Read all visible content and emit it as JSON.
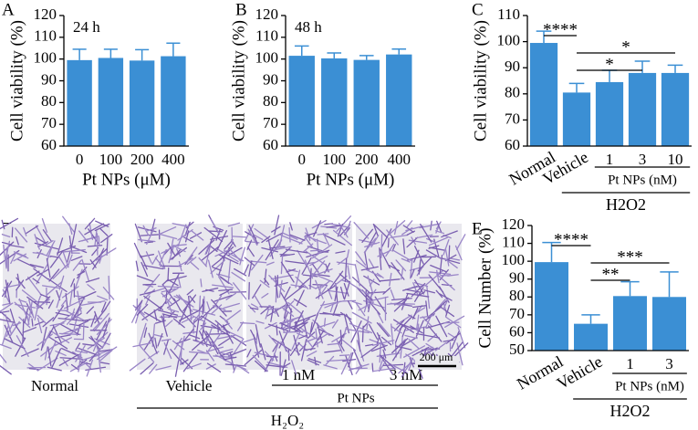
{
  "chart_data": [
    {
      "type": "bar",
      "panel": "A",
      "annotation": "24 h",
      "y_label": "Cell viability (%)",
      "x_label": "Pt NPs (μM)",
      "categories": [
        "0",
        "100",
        "200",
        "400"
      ],
      "values": [
        99.5,
        100.5,
        99.3,
        101.3
      ],
      "errors": [
        5,
        4,
        5,
        6
      ],
      "color": "#3b8fd4",
      "ylim": [
        60,
        120
      ],
      "yticks": [
        60,
        70,
        80,
        90,
        100,
        110,
        120
      ]
    },
    {
      "type": "bar",
      "panel": "B",
      "annotation": "48 h",
      "y_label": "Cell viability (%)",
      "x_label": "Pt NPs (μM)",
      "categories": [
        "0",
        "100",
        "200",
        "400"
      ],
      "values": [
        101.5,
        100.3,
        99.6,
        102.1
      ],
      "errors": [
        4.5,
        2.5,
        2,
        2.5
      ],
      "color": "#3b8fd4",
      "ylim": [
        60,
        120
      ],
      "yticks": [
        60,
        70,
        80,
        90,
        100,
        110,
        120
      ]
    },
    {
      "type": "bar",
      "panel": "C",
      "y_label": "Cell viability (%)",
      "categories": [
        "Normal",
        "Vehicle",
        "1",
        "3",
        "10"
      ],
      "values": [
        99.5,
        80.5,
        84.5,
        88,
        88
      ],
      "errors": [
        4.5,
        3.5,
        4.5,
        4.5,
        3
      ],
      "color": "#3b8fd4",
      "ylim": [
        60,
        110
      ],
      "yticks": [
        60,
        70,
        80,
        90,
        100,
        110
      ],
      "significance": [
        {
          "label": "****",
          "between": [
            "Normal",
            "Vehicle"
          ]
        },
        {
          "label": "*",
          "between": [
            "Vehicle",
            "10"
          ]
        },
        {
          "label": "*",
          "between": [
            "Vehicle",
            "3"
          ]
        }
      ],
      "groups": [
        {
          "label": "Pt NPs (nM)",
          "span": [
            "1",
            "10"
          ]
        },
        {
          "label": "H2O2",
          "span": [
            "Vehicle",
            "10"
          ]
        }
      ]
    },
    {
      "type": "bar",
      "panel": "E",
      "y_label": "Cell Number (%)",
      "categories": [
        "Normal",
        "Vehicle",
        "1",
        "3"
      ],
      "values": [
        99.5,
        65,
        80.5,
        80
      ],
      "errors": [
        11,
        5,
        8,
        14
      ],
      "color": "#3b8fd4",
      "ylim": [
        50,
        120
      ],
      "yticks": [
        50,
        60,
        70,
        80,
        90,
        100,
        110,
        120
      ],
      "significance": [
        {
          "label": "****",
          "between": [
            "Normal",
            "Vehicle"
          ]
        },
        {
          "label": "***",
          "between": [
            "Vehicle",
            "3"
          ]
        },
        {
          "label": "**",
          "between": [
            "Vehicle",
            "1"
          ]
        }
      ],
      "groups": [
        {
          "label": "Pt NPs (nM)",
          "span": [
            "1",
            "3"
          ]
        },
        {
          "label": "H2O2",
          "span": [
            "Vehicle",
            "3"
          ]
        }
      ]
    }
  ],
  "micrographs": {
    "panel": "D",
    "labels": [
      "Normal",
      "Vehicle",
      "1 nM",
      "3 nM"
    ],
    "group": "Pt NPs",
    "treatment": "H₂O₂",
    "scale_bar": "200 μm"
  }
}
